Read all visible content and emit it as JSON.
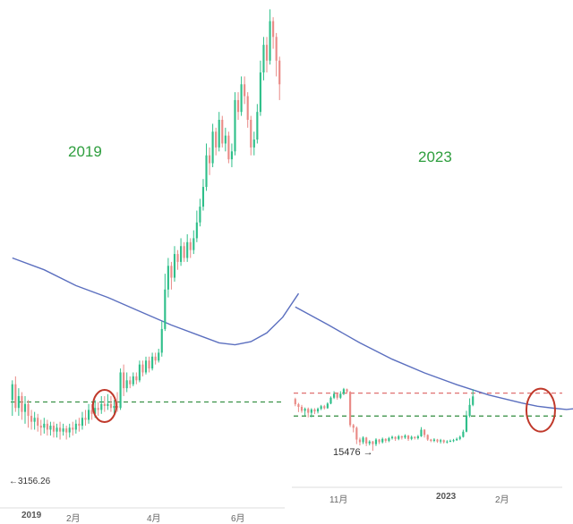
{
  "chart_data": [
    {
      "type": "candlestick",
      "title": "2019",
      "colors": {
        "up": "#2fbf8a",
        "down": "#e98a86",
        "ma": "#5b6fbf",
        "support": "#2e8b3c",
        "annotation": "#c0392b"
      },
      "y_range": [
        2600,
        14200
      ],
      "x_ticks": [
        "2019",
        "2月",
        "4月",
        "6月"
      ],
      "low_marker": {
        "text": "3156.26",
        "value": 3156.26
      },
      "support_level": 4150,
      "moving_average": [
        [
          0,
          7800
        ],
        [
          10,
          7500
        ],
        [
          20,
          7100
        ],
        [
          30,
          6800
        ],
        [
          40,
          6450
        ],
        [
          50,
          6100
        ],
        [
          60,
          5800
        ],
        [
          65,
          5650
        ],
        [
          70,
          5600
        ],
        [
          75,
          5680
        ],
        [
          80,
          5900
        ],
        [
          85,
          6300
        ],
        [
          90,
          6900
        ]
      ],
      "annotation_circle": {
        "x": 29,
        "y": 4050
      },
      "candles": [
        [
          0,
          4200,
          4600,
          3800,
          4700
        ],
        [
          1,
          4600,
          4000,
          3900,
          4800
        ],
        [
          2,
          4000,
          4300,
          3800,
          4500
        ],
        [
          3,
          4300,
          3900,
          3700,
          4400
        ],
        [
          4,
          3900,
          4100,
          3600,
          4300
        ],
        [
          5,
          4100,
          3800,
          3500,
          4200
        ],
        [
          6,
          3800,
          3650,
          3450,
          3950
        ],
        [
          7,
          3650,
          3750,
          3450,
          3900
        ],
        [
          8,
          3750,
          3550,
          3400,
          3850
        ],
        [
          9,
          3550,
          3500,
          3300,
          3700
        ],
        [
          10,
          3500,
          3600,
          3350,
          3750
        ],
        [
          11,
          3600,
          3450,
          3300,
          3700
        ],
        [
          12,
          3450,
          3550,
          3300,
          3650
        ],
        [
          13,
          3550,
          3400,
          3250,
          3650
        ],
        [
          14,
          3400,
          3500,
          3250,
          3600
        ],
        [
          15,
          3500,
          3400,
          3200,
          3650
        ],
        [
          16,
          3400,
          3480,
          3300,
          3600
        ],
        [
          17,
          3480,
          3380,
          3200,
          3550
        ],
        [
          18,
          3380,
          3500,
          3250,
          3600
        ],
        [
          19,
          3500,
          3450,
          3300,
          3650
        ],
        [
          20,
          3450,
          3600,
          3350,
          3700
        ],
        [
          21,
          3600,
          3550,
          3400,
          3750
        ],
        [
          22,
          3550,
          3750,
          3450,
          3900
        ],
        [
          23,
          3750,
          3700,
          3550,
          3950
        ],
        [
          24,
          3700,
          3950,
          3600,
          4100
        ],
        [
          25,
          3950,
          3850,
          3700,
          4100
        ],
        [
          26,
          3850,
          4000,
          3750,
          4200
        ],
        [
          27,
          4000,
          3950,
          3800,
          4150
        ],
        [
          28,
          3950,
          4100,
          3850,
          4300
        ],
        [
          29,
          4100,
          4050,
          3900,
          4300
        ],
        [
          30,
          4050,
          4100,
          3950,
          4350
        ],
        [
          31,
          4100,
          4000,
          3900,
          4300
        ],
        [
          32,
          4000,
          4050,
          3850,
          4200
        ],
        [
          33,
          4050,
          4000,
          3900,
          4400
        ],
        [
          34,
          4000,
          4900,
          3950,
          5000
        ],
        [
          35,
          4900,
          4500,
          4300,
          5100
        ],
        [
          36,
          4500,
          4700,
          4400,
          4900
        ],
        [
          37,
          4700,
          4600,
          4500,
          4800
        ],
        [
          38,
          4600,
          4800,
          4550,
          4900
        ],
        [
          39,
          4800,
          4700,
          4600,
          4900
        ],
        [
          40,
          4700,
          5100,
          4650,
          5200
        ],
        [
          41,
          5100,
          4900,
          4800,
          5200
        ],
        [
          42,
          4900,
          5200,
          4850,
          5300
        ],
        [
          43,
          5200,
          5000,
          4900,
          5300
        ],
        [
          44,
          5000,
          5300,
          4950,
          5400
        ],
        [
          45,
          5300,
          5200,
          5100,
          5400
        ],
        [
          46,
          5200,
          5400,
          5150,
          5500
        ],
        [
          47,
          5400,
          6000,
          5300,
          6200
        ],
        [
          48,
          6000,
          7000,
          5950,
          7400
        ],
        [
          49,
          7000,
          7600,
          6800,
          7800
        ],
        [
          50,
          7600,
          7300,
          7000,
          7700
        ],
        [
          51,
          7300,
          7900,
          7200,
          8100
        ],
        [
          52,
          7900,
          7700,
          7500,
          8000
        ],
        [
          53,
          7700,
          8100,
          7600,
          8300
        ],
        [
          54,
          8100,
          7800,
          7700,
          8200
        ],
        [
          55,
          7800,
          8200,
          7700,
          8400
        ],
        [
          56,
          8200,
          8000,
          7800,
          8300
        ],
        [
          57,
          8000,
          8300,
          7900,
          8500
        ],
        [
          58,
          8300,
          8700,
          8200,
          9000
        ],
        [
          59,
          8700,
          9100,
          8600,
          9300
        ],
        [
          60,
          9100,
          9600,
          9000,
          9800
        ],
        [
          61,
          9600,
          10400,
          9500,
          10700
        ],
        [
          62,
          10400,
          10200,
          9900,
          10600
        ],
        [
          63,
          10200,
          11000,
          10100,
          11200
        ],
        [
          64,
          11000,
          10600,
          10400,
          11100
        ],
        [
          65,
          10600,
          11300,
          10500,
          11500
        ],
        [
          66,
          11300,
          10700,
          10600,
          11400
        ],
        [
          67,
          10700,
          10900,
          10500,
          11100
        ],
        [
          68,
          10900,
          10300,
          10200,
          11000
        ],
        [
          69,
          10300,
          10500,
          10100,
          10700
        ],
        [
          70,
          10500,
          11800,
          10400,
          12000
        ],
        [
          71,
          11800,
          11500,
          11300,
          12000
        ],
        [
          72,
          11500,
          12200,
          11400,
          12400
        ],
        [
          73,
          12200,
          11900,
          11700,
          12400
        ],
        [
          74,
          11900,
          11300,
          11100,
          12000
        ],
        [
          75,
          11300,
          10600,
          10400,
          11400
        ],
        [
          76,
          10600,
          10800,
          10400,
          11000
        ],
        [
          77,
          10800,
          11500,
          10700,
          11700
        ],
        [
          78,
          11500,
          12500,
          11400,
          12800
        ],
        [
          79,
          12500,
          13200,
          12300,
          13400
        ],
        [
          80,
          13200,
          12800,
          12500,
          13400
        ],
        [
          81,
          12800,
          13800,
          12700,
          14100
        ],
        [
          82,
          13800,
          13400,
          13100,
          13900
        ],
        [
          83,
          13400,
          12800,
          12400,
          13500
        ],
        [
          84,
          12800,
          12200,
          11800,
          12900
        ]
      ],
      "candle_count": 85
    },
    {
      "type": "candlestick",
      "title": "2023",
      "colors": {
        "up": "#2fbf8a",
        "down": "#e98a86",
        "ma": "#5b6fbf",
        "resistance": "#e07070",
        "support": "#2e8b3c",
        "annotation": "#c0392b"
      },
      "y_range": [
        14400,
        40400
      ],
      "x_ticks": [
        "11月",
        "2023",
        "2月"
      ],
      "low_marker": {
        "text": "15476",
        "value": 15476
      },
      "resistance_level": 24300,
      "support_level": 20800,
      "moving_average": [
        [
          0,
          37500
        ],
        [
          10,
          34800
        ],
        [
          20,
          32000
        ],
        [
          30,
          29500
        ],
        [
          40,
          27400
        ],
        [
          50,
          25600
        ],
        [
          60,
          24000
        ],
        [
          70,
          22800
        ],
        [
          75,
          22300
        ],
        [
          80,
          22000
        ],
        [
          84,
          21800
        ],
        [
          88,
          22000
        ]
      ],
      "annotation_circle": {
        "x": 76,
        "y": 21700
      },
      "candles": [
        [
          0,
          23400,
          22600,
          22300,
          23600
        ],
        [
          1,
          22600,
          22200,
          21400,
          22800
        ],
        [
          2,
          22200,
          21600,
          21300,
          22500
        ],
        [
          3,
          21600,
          21900,
          20900,
          22100
        ],
        [
          4,
          21900,
          21300,
          20600,
          22100
        ],
        [
          5,
          21300,
          21800,
          20600,
          22000
        ],
        [
          6,
          21800,
          21500,
          21100,
          22000
        ],
        [
          7,
          21500,
          21900,
          21200,
          22100
        ],
        [
          8,
          21900,
          22300,
          21700,
          22500
        ],
        [
          9,
          22300,
          22000,
          21800,
          22500
        ],
        [
          10,
          22000,
          22700,
          21900,
          22900
        ],
        [
          11,
          22700,
          23600,
          22600,
          23800
        ],
        [
          12,
          23600,
          24200,
          23400,
          24600
        ],
        [
          13,
          24200,
          23600,
          23300,
          24400
        ],
        [
          14,
          23600,
          24200,
          23400,
          24600
        ],
        [
          15,
          24200,
          24900,
          24000,
          25100
        ],
        [
          16,
          24900,
          24500,
          24200,
          25000
        ],
        [
          17,
          24500,
          19400,
          19100,
          24600
        ],
        [
          18,
          19400,
          19000,
          18300,
          19600
        ],
        [
          19,
          19000,
          17200,
          16500,
          19200
        ],
        [
          20,
          17200,
          16800,
          16300,
          17500
        ],
        [
          21,
          16800,
          17500,
          16500,
          17700
        ],
        [
          22,
          17500,
          16600,
          16200,
          17600
        ],
        [
          23,
          16600,
          16900,
          16300,
          17100
        ],
        [
          24,
          16900,
          16500,
          15476,
          17000
        ],
        [
          25,
          16500,
          17200,
          16200,
          17400
        ],
        [
          26,
          17200,
          16800,
          16500,
          17300
        ],
        [
          27,
          16800,
          17300,
          16600,
          17500
        ],
        [
          28,
          17300,
          17000,
          16700,
          17400
        ],
        [
          29,
          17000,
          17400,
          16800,
          17600
        ],
        [
          30,
          17400,
          17600,
          17200,
          17800
        ],
        [
          31,
          17600,
          17300,
          17000,
          17700
        ],
        [
          32,
          17300,
          17700,
          17100,
          17900
        ],
        [
          33,
          17700,
          17500,
          17200,
          17800
        ],
        [
          34,
          17500,
          17800,
          17300,
          18000
        ],
        [
          35,
          17800,
          17300,
          17000,
          17900
        ],
        [
          36,
          17300,
          17600,
          17100,
          17800
        ],
        [
          37,
          17600,
          17400,
          17200,
          17700
        ],
        [
          38,
          17400,
          17700,
          17200,
          17900
        ],
        [
          39,
          17700,
          18700,
          17600,
          19100
        ],
        [
          40,
          18700,
          17900,
          17500,
          18800
        ],
        [
          41,
          17900,
          17200,
          17000,
          18000
        ],
        [
          42,
          17200,
          17000,
          16800,
          17300
        ],
        [
          43,
          17000,
          17200,
          16800,
          17400
        ],
        [
          44,
          17200,
          16900,
          16700,
          17300
        ],
        [
          45,
          16900,
          17100,
          16600,
          17300
        ],
        [
          46,
          17100,
          16800,
          16600,
          17200
        ],
        [
          47,
          16800,
          16900,
          16600,
          17100
        ],
        [
          48,
          16900,
          17000,
          16800,
          17200
        ],
        [
          49,
          17000,
          17100,
          16800,
          17300
        ],
        [
          50,
          17100,
          17300,
          17000,
          17500
        ],
        [
          51,
          17300,
          17600,
          17100,
          17800
        ],
        [
          52,
          17600,
          18400,
          17500,
          18700
        ],
        [
          53,
          18400,
          20800,
          18300,
          21600
        ],
        [
          54,
          20800,
          22500,
          20600,
          23500
        ],
        [
          55,
          22500,
          23800,
          22300,
          24900
        ]
      ],
      "candle_count": 56
    }
  ]
}
